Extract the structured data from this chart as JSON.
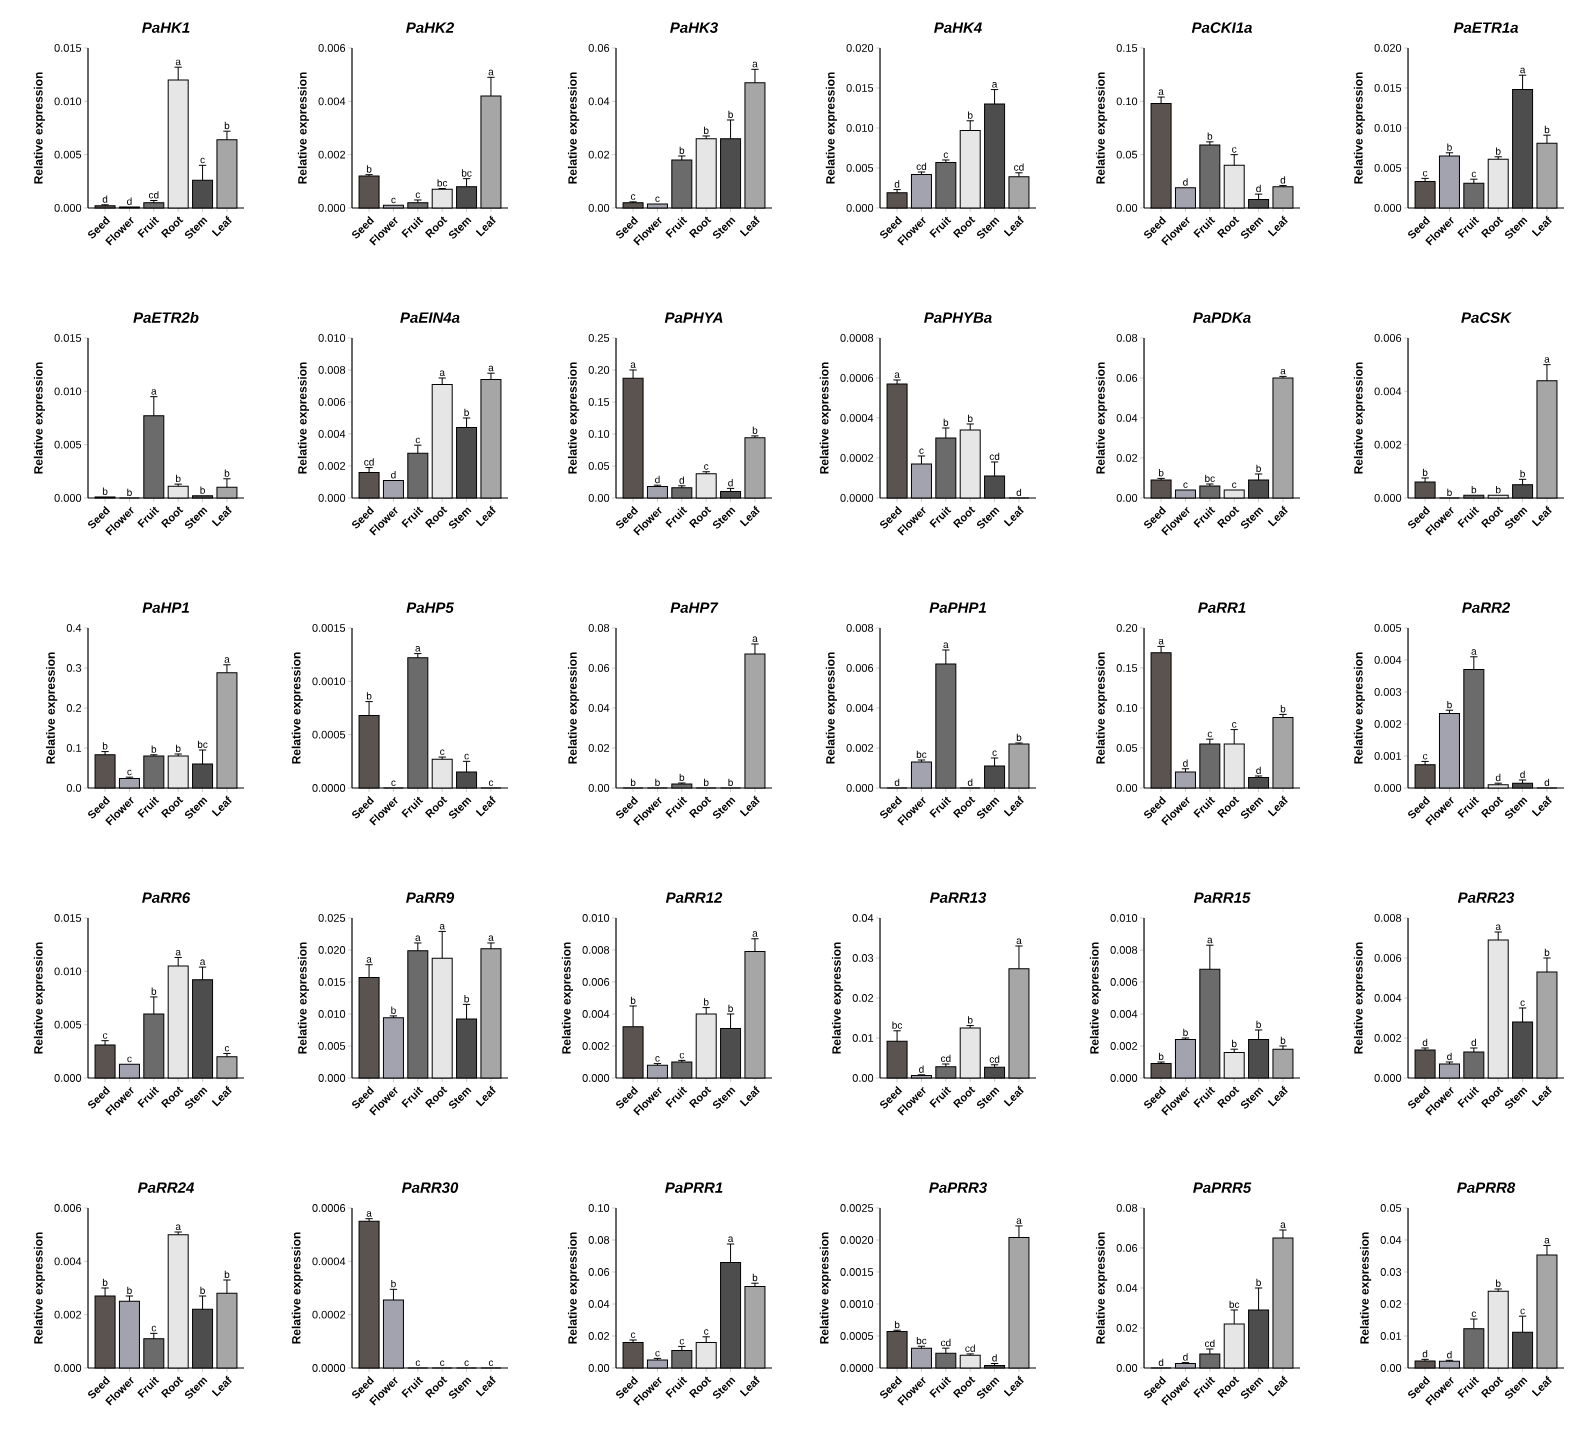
{
  "chart_data": [
    {
      "type": "bar",
      "title": "PaHK1",
      "ylabel": "Relative expression",
      "categories": [
        "Seed",
        "Flower",
        "Fruit",
        "Root",
        "Stem",
        "Leaf"
      ],
      "colors": [
        "#5b5350",
        "#a3a3b0",
        "#6b6b6b",
        "#e6e6e6",
        "#4d4d4d",
        "#a6a6a6"
      ],
      "values": [
        0.0002,
        0.0001,
        0.0005,
        0.012,
        0.0026,
        0.0064
      ],
      "errors": [
        0.0001,
        null,
        0.0002,
        0.0012,
        0.0014,
        0.0008
      ],
      "value_labels": [
        "d",
        "d",
        "cd",
        "a",
        "c",
        "b"
      ],
      "ylim": [
        0,
        0.015
      ],
      "yticks": [
        {
          "value": 0,
          "label": "0.000"
        },
        {
          "value": 0.005,
          "label": "0.005"
        },
        {
          "value": 0.01,
          "label": "0.010"
        },
        {
          "value": 0.015,
          "label": "0.015"
        }
      ]
    },
    {
      "type": "bar",
      "title": "PaHK2",
      "ylabel": "Relative expression",
      "categories": [
        "Seed",
        "Flower",
        "Fruit",
        "Root",
        "Stem",
        "Leaf"
      ],
      "colors": [
        "#5b5350",
        "#a3a3b0",
        "#6b6b6b",
        "#e6e6e6",
        "#4d4d4d",
        "#a6a6a6"
      ],
      "values": [
        0.0012,
        0.0001,
        0.0002,
        0.0007,
        0.0008,
        0.0042
      ],
      "errors": [
        5e-05,
        null,
        0.0001,
        3e-05,
        0.0003,
        0.0007
      ],
      "value_labels": [
        "b",
        "c",
        "c",
        "bc",
        "bc",
        "a"
      ],
      "ylim": [
        0,
        0.006
      ],
      "yticks": [
        {
          "value": 0,
          "label": "0.000"
        },
        {
          "value": 0.002,
          "label": "0.002"
        },
        {
          "value": 0.004,
          "label": "0.004"
        },
        {
          "value": 0.006,
          "label": "0.006"
        }
      ]
    },
    {
      "type": "bar",
      "title": "PaHK3",
      "ylabel": "Relative expression",
      "categories": [
        "Seed",
        "Flower",
        "Fruit",
        "Root",
        "Stem",
        "Leaf"
      ],
      "colors": [
        "#5b5350",
        "#a3a3b0",
        "#6b6b6b",
        "#e6e6e6",
        "#4d4d4d",
        "#a6a6a6"
      ],
      "values": [
        0.002,
        0.0015,
        0.018,
        0.026,
        0.026,
        0.047
      ],
      "errors": [
        0.0003,
        null,
        0.0015,
        0.001,
        0.007,
        0.005
      ],
      "value_labels": [
        "c",
        "c",
        "b",
        "b",
        "b",
        "a"
      ],
      "ylim": [
        0,
        0.06
      ],
      "yticks": [
        {
          "value": 0,
          "label": "0.00"
        },
        {
          "value": 0.02,
          "label": "0.02"
        },
        {
          "value": 0.04,
          "label": "0.04"
        },
        {
          "value": 0.06,
          "label": "0.06"
        }
      ]
    },
    {
      "type": "bar",
      "title": "PaHK4",
      "ylabel": "Relative expression",
      "categories": [
        "Seed",
        "Flower",
        "Fruit",
        "Root",
        "Stem",
        "Leaf"
      ],
      "colors": [
        "#5b5350",
        "#a3a3b0",
        "#6b6b6b",
        "#e6e6e6",
        "#4d4d4d",
        "#a6a6a6"
      ],
      "values": [
        0.0019,
        0.0042,
        0.0057,
        0.0097,
        0.013,
        0.0039
      ],
      "errors": [
        0.0004,
        0.0003,
        0.0003,
        0.0012,
        0.0018,
        0.0005
      ],
      "value_labels": [
        "d",
        "cd",
        "c",
        "b",
        "a",
        "cd"
      ],
      "ylim": [
        0,
        0.02
      ],
      "yticks": [
        {
          "value": 0,
          "label": "0.000"
        },
        {
          "value": 0.005,
          "label": "0.005"
        },
        {
          "value": 0.01,
          "label": "0.010"
        },
        {
          "value": 0.015,
          "label": "0.015"
        },
        {
          "value": 0.02,
          "label": "0.020"
        }
      ]
    },
    {
      "type": "bar",
      "title": "PaCKI1a",
      "ylabel": "Relative expression",
      "categories": [
        "Seed",
        "Flower",
        "Fruit",
        "Root",
        "Stem",
        "Leaf"
      ],
      "colors": [
        "#5b5350",
        "#a3a3b0",
        "#6b6b6b",
        "#e6e6e6",
        "#4d4d4d",
        "#a6a6a6"
      ],
      "values": [
        0.098,
        0.019,
        0.059,
        0.04,
        0.008,
        0.02
      ],
      "errors": [
        0.006,
        null,
        0.003,
        0.01,
        0.005,
        0.001
      ],
      "value_labels": [
        "a",
        "d",
        "b",
        "c",
        "d",
        "d"
      ],
      "ylim": [
        0,
        0.15
      ],
      "yticks": [
        {
          "value": 0,
          "label": "0.00"
        },
        {
          "value": 0.05,
          "label": "0.05"
        },
        {
          "value": 0.1,
          "label": "0.10"
        },
        {
          "value": 0.15,
          "label": "0.15"
        }
      ]
    },
    {
      "type": "bar",
      "title": "PaETR1a",
      "ylabel": "Relative expression",
      "categories": [
        "Seed",
        "Flower",
        "Fruit",
        "Root",
        "Stem",
        "Leaf"
      ],
      "colors": [
        "#5b5350",
        "#a3a3b0",
        "#6b6b6b",
        "#e6e6e6",
        "#4d4d4d",
        "#a6a6a6"
      ],
      "values": [
        0.0033,
        0.0065,
        0.0031,
        0.0061,
        0.0148,
        0.0081
      ],
      "errors": [
        0.0004,
        0.0004,
        0.0005,
        0.0003,
        0.0018,
        0.001
      ],
      "value_labels": [
        "c",
        "b",
        "c",
        "b",
        "a",
        "b"
      ],
      "ylim": [
        0,
        0.02
      ],
      "yticks": [
        {
          "value": 0,
          "label": "0.000"
        },
        {
          "value": 0.005,
          "label": "0.005"
        },
        {
          "value": 0.01,
          "label": "0.010"
        },
        {
          "value": 0.015,
          "label": "0.015"
        },
        {
          "value": 0.02,
          "label": "0.020"
        }
      ]
    },
    {
      "type": "bar",
      "title": "PaETR2b",
      "ylabel": "Relative expression",
      "categories": [
        "Seed",
        "Flower",
        "Fruit",
        "Root",
        "Stem",
        "Leaf"
      ],
      "colors": [
        "#5b5350",
        "#a3a3b0",
        "#6b6b6b",
        "#e6e6e6",
        "#4d4d4d",
        "#a6a6a6"
      ],
      "values": [
        0.0001,
        0,
        0.0077,
        0.0011,
        0.0002,
        0.001
      ],
      "errors": [
        null,
        null,
        0.0018,
        0.0002,
        null,
        0.0008
      ],
      "value_labels": [
        "b",
        "b",
        "a",
        "b",
        "b",
        "b"
      ],
      "ylim": [
        0,
        0.015
      ],
      "yticks": [
        {
          "value": 0,
          "label": "0.000"
        },
        {
          "value": 0.005,
          "label": "0.005"
        },
        {
          "value": 0.01,
          "label": "0.010"
        },
        {
          "value": 0.015,
          "label": "0.015"
        }
      ]
    },
    {
      "type": "bar",
      "title": "PaEIN4a",
      "ylabel": "Relative expression",
      "categories": [
        "Seed",
        "Flower",
        "Fruit",
        "Root",
        "Stem",
        "Leaf"
      ],
      "colors": [
        "#5b5350",
        "#a3a3b0",
        "#6b6b6b",
        "#e6e6e6",
        "#4d4d4d",
        "#a6a6a6"
      ],
      "values": [
        0.0016,
        0.0011,
        0.0028,
        0.0071,
        0.0044,
        0.0074
      ],
      "errors": [
        0.0003,
        null,
        0.0005,
        0.0004,
        0.0006,
        0.0004
      ],
      "value_labels": [
        "cd",
        "d",
        "c",
        "a",
        "b",
        "a"
      ],
      "ylim": [
        0,
        0.01
      ],
      "yticks": [
        {
          "value": 0,
          "label": "0.000"
        },
        {
          "value": 0.002,
          "label": "0.002"
        },
        {
          "value": 0.004,
          "label": "0.004"
        },
        {
          "value": 0.006,
          "label": "0.006"
        },
        {
          "value": 0.008,
          "label": "0.008"
        },
        {
          "value": 0.01,
          "label": "0.010"
        }
      ]
    },
    {
      "type": "bar",
      "title": "PaPHYA",
      "ylabel": "Relative expression",
      "categories": [
        "Seed",
        "Flower",
        "Fruit",
        "Root",
        "Stem",
        "Leaf"
      ],
      "colors": [
        "#5b5350",
        "#a3a3b0",
        "#6b6b6b",
        "#e6e6e6",
        "#4d4d4d",
        "#a6a6a6"
      ],
      "values": [
        0.187,
        0.018,
        0.016,
        0.038,
        0.01,
        0.094
      ],
      "errors": [
        0.013,
        0.002,
        0.003,
        0.003,
        0.005,
        0.003
      ],
      "value_labels": [
        "a",
        "d",
        "d",
        "c",
        "d",
        "b"
      ],
      "ylim": [
        0,
        0.25
      ],
      "yticks": [
        {
          "value": 0,
          "label": "0.00"
        },
        {
          "value": 0.05,
          "label": "0.05"
        },
        {
          "value": 0.1,
          "label": "0.10"
        },
        {
          "value": 0.15,
          "label": "0.15"
        },
        {
          "value": 0.2,
          "label": "0.20"
        },
        {
          "value": 0.25,
          "label": "0.25"
        }
      ]
    },
    {
      "type": "bar",
      "title": "PaPHYBa",
      "ylabel": "Relative expression",
      "categories": [
        "Seed",
        "Flower",
        "Fruit",
        "Root",
        "Stem",
        "Leaf"
      ],
      "colors": [
        "#5b5350",
        "#a3a3b0",
        "#6b6b6b",
        "#e6e6e6",
        "#4d4d4d",
        "#a6a6a6"
      ],
      "values": [
        0.00057,
        0.00017,
        0.0003,
        0.00034,
        0.00011,
        0
      ],
      "errors": [
        2e-05,
        4e-05,
        5e-05,
        3e-05,
        7e-05,
        null
      ],
      "value_labels": [
        "a",
        "c",
        "b",
        "b",
        "cd",
        "d"
      ],
      "ylim": [
        0,
        0.0008
      ],
      "yticks": [
        {
          "value": 0,
          "label": "0.0000"
        },
        {
          "value": 0.0002,
          "label": "0.0002"
        },
        {
          "value": 0.0004,
          "label": "0.0004"
        },
        {
          "value": 0.0006,
          "label": "0.0006"
        },
        {
          "value": 0.0008,
          "label": "0.0008"
        }
      ]
    },
    {
      "type": "bar",
      "title": "PaPDKa",
      "ylabel": "Relative expression",
      "categories": [
        "Seed",
        "Flower",
        "Fruit",
        "Root",
        "Stem",
        "Leaf"
      ],
      "colors": [
        "#5b5350",
        "#a3a3b0",
        "#6b6b6b",
        "#e6e6e6",
        "#4d4d4d",
        "#a6a6a6"
      ],
      "values": [
        0.009,
        0.004,
        0.006,
        0.004,
        0.009,
        0.06
      ],
      "errors": [
        0.0008,
        null,
        0.001,
        null,
        0.003,
        0.0008
      ],
      "value_labels": [
        "b",
        "c",
        "bc",
        "c",
        "b",
        "a"
      ],
      "ylim": [
        0,
        0.08
      ],
      "yticks": [
        {
          "value": 0,
          "label": "0.00"
        },
        {
          "value": 0.02,
          "label": "0.02"
        },
        {
          "value": 0.04,
          "label": "0.04"
        },
        {
          "value": 0.06,
          "label": "0.06"
        },
        {
          "value": 0.08,
          "label": "0.08"
        }
      ]
    },
    {
      "type": "bar",
      "title": "PaCSK",
      "ylabel": "Relative expression",
      "categories": [
        "Seed",
        "Flower",
        "Fruit",
        "Root",
        "Stem",
        "Leaf"
      ],
      "colors": [
        "#5b5350",
        "#a3a3b0",
        "#6b6b6b",
        "#e6e6e6",
        "#4d4d4d",
        "#a6a6a6"
      ],
      "values": [
        0.0006,
        0,
        0.0001,
        0.0001,
        0.0005,
        0.0044
      ],
      "errors": [
        0.00015,
        null,
        null,
        null,
        0.0002,
        0.0006
      ],
      "value_labels": [
        "b",
        "b",
        "b",
        "b",
        "b",
        "a"
      ],
      "ylim": [
        0,
        0.006
      ],
      "yticks": [
        {
          "value": 0,
          "label": "0.000"
        },
        {
          "value": 0.002,
          "label": "0.002"
        },
        {
          "value": 0.004,
          "label": "0.004"
        },
        {
          "value": 0.006,
          "label": "0.006"
        }
      ]
    },
    {
      "type": "bar",
      "title": "PaHP1",
      "ylabel": "Relative expression",
      "categories": [
        "Seed",
        "Flower",
        "Fruit",
        "Root",
        "Stem",
        "Leaf"
      ],
      "colors": [
        "#5b5350",
        "#a3a3b0",
        "#6b6b6b",
        "#e6e6e6",
        "#4d4d4d",
        "#a6a6a6"
      ],
      "values": [
        0.083,
        0.024,
        0.08,
        0.08,
        0.06,
        0.288
      ],
      "errors": [
        0.008,
        0.003,
        0.003,
        0.005,
        0.035,
        0.02
      ],
      "value_labels": [
        "b",
        "c",
        "b",
        "b",
        "bc",
        "a"
      ],
      "ylim": [
        0,
        0.4
      ],
      "yticks": [
        {
          "value": 0,
          "label": "0.0"
        },
        {
          "value": 0.1,
          "label": "0.1"
        },
        {
          "value": 0.2,
          "label": "0.2"
        },
        {
          "value": 0.3,
          "label": "0.3"
        },
        {
          "value": 0.4,
          "label": "0.4"
        }
      ]
    },
    {
      "type": "bar",
      "title": "PaHP5",
      "ylabel": "Relative expression",
      "categories": [
        "Seed",
        "Flower",
        "Fruit",
        "Root",
        "Stem",
        "Leaf"
      ],
      "colors": [
        "#5b5350",
        "#a3a3b0",
        "#6b6b6b",
        "#e6e6e6",
        "#4d4d4d",
        "#a6a6a6"
      ],
      "values": [
        0.00068,
        0,
        0.00122,
        0.00027,
        0.00015,
        0
      ],
      "errors": [
        0.00013,
        null,
        4e-05,
        2e-05,
        0.0001,
        null
      ],
      "value_labels": [
        "b",
        "c",
        "a",
        "c",
        "c",
        "c"
      ],
      "ylim": [
        0,
        0.0015
      ],
      "yticks": [
        {
          "value": 0,
          "label": "0.0000"
        },
        {
          "value": 0.0005,
          "label": "0.0005"
        },
        {
          "value": 0.001,
          "label": "0.0010"
        },
        {
          "value": 0.0015,
          "label": "0.0015"
        }
      ]
    },
    {
      "type": "bar",
      "title": "PaHP7",
      "ylabel": "Relative expression",
      "categories": [
        "Seed",
        "Flower",
        "Fruit",
        "Root",
        "Stem",
        "Leaf"
      ],
      "colors": [
        "#5b5350",
        "#a3a3b0",
        "#6b6b6b",
        "#e6e6e6",
        "#4d4d4d",
        "#a6a6a6"
      ],
      "values": [
        0,
        0,
        0.002,
        0,
        0,
        0.067
      ],
      "errors": [
        null,
        null,
        0.0005,
        null,
        null,
        0.005
      ],
      "value_labels": [
        "b",
        "b",
        "b",
        "b",
        "b",
        "a"
      ],
      "ylim": [
        0,
        0.08
      ],
      "yticks": [
        {
          "value": 0,
          "label": "0.00"
        },
        {
          "value": 0.02,
          "label": "0.02"
        },
        {
          "value": 0.04,
          "label": "0.04"
        },
        {
          "value": 0.06,
          "label": "0.06"
        },
        {
          "value": 0.08,
          "label": "0.08"
        }
      ]
    },
    {
      "type": "bar",
      "title": "PaPHP1",
      "ylabel": "Relative expression",
      "categories": [
        "Seed",
        "Flower",
        "Fruit",
        "Root",
        "Stem",
        "Leaf"
      ],
      "colors": [
        "#5b5350",
        "#a3a3b0",
        "#6b6b6b",
        "#e6e6e6",
        "#4d4d4d",
        "#a6a6a6"
      ],
      "values": [
        0,
        0.0013,
        0.0062,
        0,
        0.0011,
        0.0022
      ],
      "errors": [
        null,
        0.0001,
        0.0007,
        null,
        0.0004,
        5e-05
      ],
      "value_labels": [
        "d",
        "bc",
        "a",
        "d",
        "c",
        "b"
      ],
      "ylim": [
        0,
        0.008
      ],
      "yticks": [
        {
          "value": 0,
          "label": "0.000"
        },
        {
          "value": 0.002,
          "label": "0.002"
        },
        {
          "value": 0.004,
          "label": "0.004"
        },
        {
          "value": 0.006,
          "label": "0.006"
        },
        {
          "value": 0.008,
          "label": "0.008"
        }
      ]
    },
    {
      "type": "bar",
      "title": "PaRR1",
      "ylabel": "Relative expression",
      "categories": [
        "Seed",
        "Flower",
        "Fruit",
        "Root",
        "Stem",
        "Leaf"
      ],
      "colors": [
        "#5b5350",
        "#a3a3b0",
        "#6b6b6b",
        "#e6e6e6",
        "#4d4d4d",
        "#a6a6a6"
      ],
      "values": [
        0.169,
        0.02,
        0.055,
        0.055,
        0.013,
        0.088
      ],
      "errors": [
        0.008,
        0.004,
        0.006,
        0.018,
        0.002,
        0.004
      ],
      "value_labels": [
        "a",
        "d",
        "c",
        "c",
        "d",
        "b"
      ],
      "ylim": [
        0,
        0.2
      ],
      "yticks": [
        {
          "value": 0,
          "label": "0.00"
        },
        {
          "value": 0.05,
          "label": "0.05"
        },
        {
          "value": 0.1,
          "label": "0.10"
        },
        {
          "value": 0.15,
          "label": "0.15"
        },
        {
          "value": 0.2,
          "label": "0.20"
        }
      ]
    },
    {
      "type": "bar",
      "title": "PaRR2",
      "ylabel": "Relative expression",
      "categories": [
        "Seed",
        "Flower",
        "Fruit",
        "Root",
        "Stem",
        "Leaf"
      ],
      "colors": [
        "#5b5350",
        "#a3a3b0",
        "#6b6b6b",
        "#e6e6e6",
        "#4d4d4d",
        "#a6a6a6"
      ],
      "values": [
        0.00073,
        0.00233,
        0.0037,
        0.0001,
        0.00015,
        0
      ],
      "errors": [
        0.0001,
        0.0001,
        0.0004,
        5e-05,
        0.0001,
        null
      ],
      "value_labels": [
        "c",
        "b",
        "a",
        "d",
        "d",
        "d"
      ],
      "ylim": [
        0,
        0.005
      ],
      "yticks": [
        {
          "value": 0,
          "label": "0.000"
        },
        {
          "value": 0.001,
          "label": "0.001"
        },
        {
          "value": 0.002,
          "label": "0.002"
        },
        {
          "value": 0.003,
          "label": "0.003"
        },
        {
          "value": 0.004,
          "label": "0.004"
        },
        {
          "value": 0.005,
          "label": "0.005"
        }
      ]
    },
    {
      "type": "bar",
      "title": "PaRR6",
      "ylabel": "Relative expression",
      "categories": [
        "Seed",
        "Flower",
        "Fruit",
        "Root",
        "Stem",
        "Leaf"
      ],
      "colors": [
        "#5b5350",
        "#a3a3b0",
        "#6b6b6b",
        "#e6e6e6",
        "#4d4d4d",
        "#a6a6a6"
      ],
      "values": [
        0.0031,
        0.0013,
        0.006,
        0.0105,
        0.0092,
        0.002
      ],
      "errors": [
        0.0004,
        null,
        0.0016,
        0.0008,
        0.0012,
        0.0003
      ],
      "value_labels": [
        "c",
        "c",
        "b",
        "a",
        "a",
        "c"
      ],
      "ylim": [
        0,
        0.015
      ],
      "yticks": [
        {
          "value": 0,
          "label": "0.000"
        },
        {
          "value": 0.005,
          "label": "0.005"
        },
        {
          "value": 0.01,
          "label": "0.010"
        },
        {
          "value": 0.015,
          "label": "0.015"
        }
      ]
    },
    {
      "type": "bar",
      "title": "PaRR9",
      "ylabel": "Relative expression",
      "categories": [
        "Seed",
        "Flower",
        "Fruit",
        "Root",
        "Stem",
        "Leaf"
      ],
      "colors": [
        "#5b5350",
        "#a3a3b0",
        "#6b6b6b",
        "#e6e6e6",
        "#4d4d4d",
        "#a6a6a6"
      ],
      "values": [
        0.0157,
        0.0094,
        0.0199,
        0.0187,
        0.0092,
        0.0202
      ],
      "errors": [
        0.002,
        0.0003,
        0.0012,
        0.0042,
        0.0023,
        0.0009
      ],
      "value_labels": [
        "a",
        "b",
        "a",
        "a",
        "b",
        "a"
      ],
      "ylim": [
        0,
        0.025
      ],
      "yticks": [
        {
          "value": 0,
          "label": "0.000"
        },
        {
          "value": 0.005,
          "label": "0.005"
        },
        {
          "value": 0.01,
          "label": "0.010"
        },
        {
          "value": 0.015,
          "label": "0.015"
        },
        {
          "value": 0.02,
          "label": "0.020"
        },
        {
          "value": 0.025,
          "label": "0.025"
        }
      ]
    },
    {
      "type": "bar",
      "title": "PaRR12",
      "ylabel": "Relative expression",
      "categories": [
        "Seed",
        "Flower",
        "Fruit",
        "Root",
        "Stem",
        "Leaf"
      ],
      "colors": [
        "#5b5350",
        "#a3a3b0",
        "#6b6b6b",
        "#e6e6e6",
        "#4d4d4d",
        "#a6a6a6"
      ],
      "values": [
        0.0032,
        0.0008,
        0.001,
        0.004,
        0.0031,
        0.0079
      ],
      "errors": [
        0.0013,
        0.0001,
        0.0001,
        0.0004,
        0.0009,
        0.0008
      ],
      "value_labels": [
        "b",
        "c",
        "c",
        "b",
        "b",
        "a"
      ],
      "ylim": [
        0,
        0.01
      ],
      "yticks": [
        {
          "value": 0,
          "label": "0.000"
        },
        {
          "value": 0.002,
          "label": "0.002"
        },
        {
          "value": 0.004,
          "label": "0.004"
        },
        {
          "value": 0.006,
          "label": "0.006"
        },
        {
          "value": 0.008,
          "label": "0.008"
        },
        {
          "value": 0.01,
          "label": "0.010"
        }
      ]
    },
    {
      "type": "bar",
      "title": "PaRR13",
      "ylabel": "Relative expression",
      "categories": [
        "Seed",
        "Flower",
        "Fruit",
        "Root",
        "Stem",
        "Leaf"
      ],
      "colors": [
        "#5b5350",
        "#a3a3b0",
        "#6b6b6b",
        "#e6e6e6",
        "#4d4d4d",
        "#a6a6a6"
      ],
      "values": [
        0.0092,
        0.0006,
        0.0028,
        0.0125,
        0.0027,
        0.0273
      ],
      "errors": [
        0.0026,
        0.0002,
        0.0007,
        0.0006,
        0.0006,
        0.0057
      ],
      "value_labels": [
        "bc",
        "d",
        "cd",
        "b",
        "cd",
        "a"
      ],
      "ylim": [
        0,
        0.04
      ],
      "yticks": [
        {
          "value": 0,
          "label": "0.00"
        },
        {
          "value": 0.01,
          "label": "0.01"
        },
        {
          "value": 0.02,
          "label": "0.02"
        },
        {
          "value": 0.03,
          "label": "0.03"
        },
        {
          "value": 0.04,
          "label": "0.04"
        }
      ]
    },
    {
      "type": "bar",
      "title": "PaRR15",
      "ylabel": "Relative expression",
      "categories": [
        "Seed",
        "Flower",
        "Fruit",
        "Root",
        "Stem",
        "Leaf"
      ],
      "colors": [
        "#5b5350",
        "#a3a3b0",
        "#6b6b6b",
        "#e6e6e6",
        "#4d4d4d",
        "#a6a6a6"
      ],
      "values": [
        0.0009,
        0.0024,
        0.0068,
        0.0016,
        0.0024,
        0.0018
      ],
      "errors": [
        0.0001,
        0.0001,
        0.0015,
        0.0002,
        0.0006,
        0.0002
      ],
      "value_labels": [
        "b",
        "b",
        "a",
        "b",
        "b",
        "b"
      ],
      "ylim": [
        0,
        0.01
      ],
      "yticks": [
        {
          "value": 0,
          "label": "0.000"
        },
        {
          "value": 0.002,
          "label": "0.002"
        },
        {
          "value": 0.004,
          "label": "0.004"
        },
        {
          "value": 0.006,
          "label": "0.006"
        },
        {
          "value": 0.008,
          "label": "0.008"
        },
        {
          "value": 0.01,
          "label": "0.010"
        }
      ]
    },
    {
      "type": "bar",
      "title": "PaRR23",
      "ylabel": "Relative expression",
      "categories": [
        "Seed",
        "Flower",
        "Fruit",
        "Root",
        "Stem",
        "Leaf"
      ],
      "colors": [
        "#5b5350",
        "#a3a3b0",
        "#6b6b6b",
        "#e6e6e6",
        "#4d4d4d",
        "#a6a6a6"
      ],
      "values": [
        0.0014,
        0.0007,
        0.0013,
        0.0069,
        0.0028,
        0.0053
      ],
      "errors": [
        0.0001,
        0.0001,
        0.0002,
        0.0004,
        0.0007,
        0.0007
      ],
      "value_labels": [
        "d",
        "d",
        "d",
        "a",
        "c",
        "b"
      ],
      "ylim": [
        0,
        0.008
      ],
      "yticks": [
        {
          "value": 0,
          "label": "0.000"
        },
        {
          "value": 0.002,
          "label": "0.002"
        },
        {
          "value": 0.004,
          "label": "0.004"
        },
        {
          "value": 0.006,
          "label": "0.006"
        },
        {
          "value": 0.008,
          "label": "0.008"
        }
      ]
    },
    {
      "type": "bar",
      "title": "PaRR24",
      "ylabel": "Relative expression",
      "categories": [
        "Seed",
        "Flower",
        "Fruit",
        "Root",
        "Stem",
        "Leaf"
      ],
      "colors": [
        "#5b5350",
        "#a3a3b0",
        "#6b6b6b",
        "#e6e6e6",
        "#4d4d4d",
        "#a6a6a6"
      ],
      "values": [
        0.0027,
        0.0025,
        0.0011,
        0.005,
        0.0022,
        0.0028
      ],
      "errors": [
        0.0003,
        0.0002,
        0.0002,
        0.0001,
        0.0005,
        0.0005
      ],
      "value_labels": [
        "b",
        "b",
        "c",
        "a",
        "b",
        "b"
      ],
      "ylim": [
        0,
        0.006
      ],
      "yticks": [
        {
          "value": 0,
          "label": "0.000"
        },
        {
          "value": 0.002,
          "label": "0.002"
        },
        {
          "value": 0.004,
          "label": "0.004"
        },
        {
          "value": 0.006,
          "label": "0.006"
        }
      ]
    },
    {
      "type": "bar",
      "title": "PaRR30",
      "ylabel": "Relative expression",
      "categories": [
        "Seed",
        "Flower",
        "Fruit",
        "Root",
        "Stem",
        "Leaf"
      ],
      "colors": [
        "#5b5350",
        "#a3a3b0",
        "#6b6b6b",
        "#e6e6e6",
        "#4d4d4d",
        "#a6a6a6"
      ],
      "values": [
        0.00055,
        0.000255,
        0,
        0,
        0,
        0
      ],
      "errors": [
        1e-05,
        4e-05,
        null,
        null,
        null,
        null
      ],
      "value_labels": [
        "a",
        "b",
        "c",
        "c",
        "c",
        "c"
      ],
      "ylim": [
        0,
        0.0006
      ],
      "yticks": [
        {
          "value": 0,
          "label": "0.0000"
        },
        {
          "value": 0.0002,
          "label": "0.0002"
        },
        {
          "value": 0.0004,
          "label": "0.0004"
        },
        {
          "value": 0.0006,
          "label": "0.0006"
        }
      ]
    },
    {
      "type": "bar",
      "title": "PaPRR1",
      "ylabel": "Relative expression",
      "categories": [
        "Seed",
        "Flower",
        "Fruit",
        "Root",
        "Stem",
        "Leaf"
      ],
      "colors": [
        "#5b5350",
        "#a3a3b0",
        "#6b6b6b",
        "#e6e6e6",
        "#4d4d4d",
        "#a6a6a6"
      ],
      "values": [
        0.016,
        0.005,
        0.011,
        0.016,
        0.066,
        0.051
      ],
      "errors": [
        0.0015,
        0.001,
        0.0025,
        0.0035,
        0.0115,
        0.002
      ],
      "value_labels": [
        "c",
        "c",
        "c",
        "c",
        "a",
        "b"
      ],
      "ylim": [
        0,
        0.1
      ],
      "yticks": [
        {
          "value": 0,
          "label": "0.00"
        },
        {
          "value": 0.02,
          "label": "0.02"
        },
        {
          "value": 0.04,
          "label": "0.04"
        },
        {
          "value": 0.06,
          "label": "0.06"
        },
        {
          "value": 0.08,
          "label": "0.08"
        },
        {
          "value": 0.1,
          "label": "0.10"
        }
      ]
    },
    {
      "type": "bar",
      "title": "PaPRR3",
      "ylabel": "Relative expression",
      "categories": [
        "Seed",
        "Flower",
        "Fruit",
        "Root",
        "Stem",
        "Leaf"
      ],
      "colors": [
        "#5b5350",
        "#a3a3b0",
        "#6b6b6b",
        "#e6e6e6",
        "#4d4d4d",
        "#a6a6a6"
      ],
      "values": [
        0.00057,
        0.00031,
        0.00023,
        0.0002,
        4e-05,
        0.00204
      ],
      "errors": [
        2e-05,
        3e-05,
        8e-05,
        2e-05,
        3e-05,
        0.00018
      ],
      "value_labels": [
        "b",
        "bc",
        "cd",
        "cd",
        "d",
        "a"
      ],
      "ylim": [
        0,
        0.0025
      ],
      "yticks": [
        {
          "value": 0,
          "label": "0.0000"
        },
        {
          "value": 0.0005,
          "label": "0.0005"
        },
        {
          "value": 0.001,
          "label": "0.0010"
        },
        {
          "value": 0.0015,
          "label": "0.0015"
        },
        {
          "value": 0.002,
          "label": "0.0020"
        },
        {
          "value": 0.0025,
          "label": "0.0025"
        }
      ]
    },
    {
      "type": "bar",
      "title": "PaPRR5",
      "ylabel": "Relative expression",
      "categories": [
        "Seed",
        "Flower",
        "Fruit",
        "Root",
        "Stem",
        "Leaf"
      ],
      "colors": [
        "#5b5350",
        "#a3a3b0",
        "#6b6b6b",
        "#e6e6e6",
        "#4d4d4d",
        "#a6a6a6"
      ],
      "values": [
        0,
        0.0022,
        0.007,
        0.022,
        0.029,
        0.065
      ],
      "errors": [
        null,
        0.0005,
        0.0025,
        0.007,
        0.011,
        0.004
      ],
      "value_labels": [
        "d",
        "d",
        "cd",
        "bc",
        "b",
        "a"
      ],
      "ylim": [
        0,
        0.08
      ],
      "yticks": [
        {
          "value": 0,
          "label": "0.00"
        },
        {
          "value": 0.02,
          "label": "0.02"
        },
        {
          "value": 0.04,
          "label": "0.04"
        },
        {
          "value": 0.06,
          "label": "0.06"
        },
        {
          "value": 0.08,
          "label": "0.08"
        }
      ]
    },
    {
      "type": "bar",
      "title": "PaPRR8",
      "ylabel": "Relative expression",
      "categories": [
        "Seed",
        "Flower",
        "Fruit",
        "Root",
        "Stem",
        "Leaf"
      ],
      "colors": [
        "#5b5350",
        "#a3a3b0",
        "#6b6b6b",
        "#e6e6e6",
        "#4d4d4d",
        "#a6a6a6"
      ],
      "values": [
        0.0022,
        0.0021,
        0.0123,
        0.024,
        0.0112,
        0.0353
      ],
      "errors": [
        0.0005,
        0.0003,
        0.003,
        0.0007,
        0.005,
        0.003
      ],
      "value_labels": [
        "d",
        "d",
        "c",
        "b",
        "c",
        "a"
      ],
      "ylim": [
        0,
        0.05
      ],
      "yticks": [
        {
          "value": 0,
          "label": "0.00"
        },
        {
          "value": 0.01,
          "label": "0.01"
        },
        {
          "value": 0.02,
          "label": "0.02"
        },
        {
          "value": 0.03,
          "label": "0.03"
        },
        {
          "value": 0.04,
          "label": "0.04"
        },
        {
          "value": 0.05,
          "label": "0.05"
        }
      ]
    }
  ]
}
